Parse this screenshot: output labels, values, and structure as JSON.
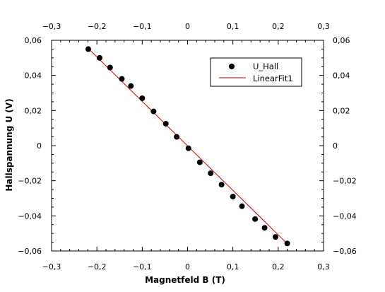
{
  "chart_data": {
    "type": "scatter",
    "title": "",
    "xlabel": "Magnetfeld B (T)",
    "ylabel": "Hallspannung U (V)",
    "xlim": [
      -0.3,
      0.3
    ],
    "ylim": [
      -0.06,
      0.06
    ],
    "x_ticks": [
      -0.3,
      -0.2,
      -0.1,
      0,
      0.1,
      0.2,
      0.3
    ],
    "y_ticks": [
      -0.06,
      -0.04,
      -0.02,
      0,
      0.02,
      0.04,
      0.06
    ],
    "x_tick_labels": [
      "−0,3",
      "−0,2",
      "−0,1",
      "0",
      "0,1",
      "0,2",
      "0,3"
    ],
    "y_tick_labels": [
      "−0,06",
      "−0,04",
      "−0,02",
      "0",
      "0,02",
      "0,04",
      "0,06"
    ],
    "grid": false,
    "legend_position": "top-right",
    "series": [
      {
        "name": "U_Hall",
        "kind": "scatter",
        "color": "#000000",
        "x": [
          -0.219,
          -0.194,
          -0.171,
          -0.145,
          -0.125,
          -0.1,
          -0.075,
          -0.048,
          -0.024,
          0.002,
          0.027,
          0.051,
          0.075,
          0.1,
          0.12,
          0.149,
          0.17,
          0.194,
          0.22
        ],
        "y": [
          0.055,
          0.05,
          0.0445,
          0.038,
          0.034,
          0.027,
          0.0195,
          0.0125,
          0.005,
          -0.0015,
          -0.0095,
          -0.0157,
          -0.0222,
          -0.029,
          -0.0345,
          -0.0418,
          -0.0468,
          -0.052,
          -0.0557
        ]
      },
      {
        "name": "LinearFit1",
        "kind": "line",
        "color": "#cc0000",
        "x": [
          -0.222,
          0.221
        ],
        "y": [
          0.0561,
          -0.0561
        ]
      }
    ]
  }
}
